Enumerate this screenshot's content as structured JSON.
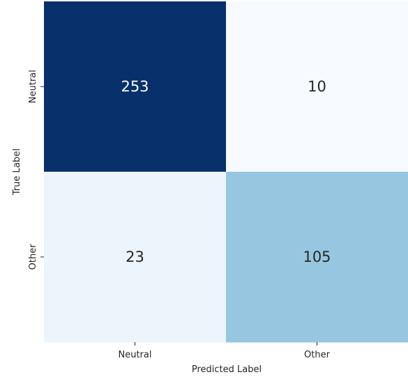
{
  "chart_data": {
    "type": "heatmap",
    "title": "",
    "xlabel": "Predicted Label",
    "ylabel": "True Label",
    "x_categories": [
      "Neutral",
      "Other"
    ],
    "y_categories": [
      "Neutral",
      "Other"
    ],
    "values": [
      [
        253,
        10
      ],
      [
        23,
        105
      ]
    ],
    "colormap": "Blues",
    "color_range": [
      10,
      253
    ],
    "colorbar": false,
    "grid": false,
    "colors": {
      "low": "#f7fbff",
      "high": "#08306b",
      "text_dark_bg": "#ffffff",
      "text_light_bg": "#262626"
    }
  }
}
